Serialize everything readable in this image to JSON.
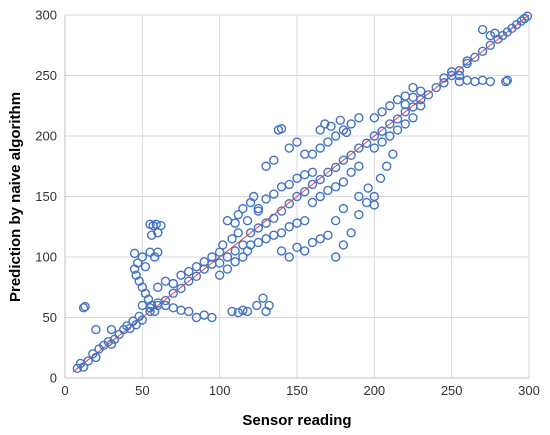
{
  "chart_data": {
    "type": "scatter",
    "title": "",
    "xlabel": "Sensor reading",
    "ylabel": "Prediction by naive algorithm",
    "xlim": [
      0,
      300
    ],
    "ylim": [
      0,
      300
    ],
    "xticks": [
      0,
      50,
      100,
      150,
      200,
      250,
      300
    ],
    "yticks": [
      0,
      50,
      100,
      150,
      200,
      250,
      300
    ],
    "grid": true,
    "legend": "none",
    "marker": "hollow-circle",
    "colors": {
      "points": "#4472C4",
      "reference_line": "#E0404A",
      "grid": "#D9D9D9",
      "axis": "#BFBFBF"
    },
    "reference_line": {
      "x": [
        5,
        300
      ],
      "y": [
        5,
        300
      ]
    },
    "series": [
      {
        "points": [
          [
            8,
            8
          ],
          [
            10,
            12
          ],
          [
            12,
            9
          ],
          [
            15,
            14
          ],
          [
            18,
            20
          ],
          [
            20,
            17
          ],
          [
            22,
            24
          ],
          [
            25,
            27
          ],
          [
            28,
            30
          ],
          [
            30,
            28
          ],
          [
            12,
            58
          ],
          [
            13,
            59
          ],
          [
            20,
            40
          ],
          [
            30,
            40
          ],
          [
            32,
            32
          ],
          [
            35,
            36
          ],
          [
            38,
            40
          ],
          [
            40,
            43
          ],
          [
            42,
            41
          ],
          [
            44,
            47
          ],
          [
            46,
            44
          ],
          [
            48,
            51
          ],
          [
            50,
            48
          ],
          [
            45,
            90
          ],
          [
            46,
            85
          ],
          [
            48,
            80
          ],
          [
            50,
            75
          ],
          [
            52,
            70
          ],
          [
            54,
            65
          ],
          [
            56,
            60
          ],
          [
            58,
            55
          ],
          [
            45,
            103
          ],
          [
            50,
            100
          ],
          [
            55,
            104
          ],
          [
            58,
            100
          ],
          [
            60,
            104
          ],
          [
            47,
            95
          ],
          [
            52,
            92
          ],
          [
            55,
            127
          ],
          [
            57,
            126
          ],
          [
            59,
            127
          ],
          [
            62,
            126
          ],
          [
            60,
            120
          ],
          [
            56,
            118
          ],
          [
            50,
            60
          ],
          [
            55,
            58
          ],
          [
            60,
            62
          ],
          [
            65,
            60
          ],
          [
            70,
            58
          ],
          [
            75,
            56
          ],
          [
            80,
            55
          ],
          [
            85,
            50
          ],
          [
            90,
            52
          ],
          [
            95,
            50
          ],
          [
            55,
            55
          ],
          [
            60,
            60
          ],
          [
            65,
            64
          ],
          [
            70,
            70
          ],
          [
            75,
            74
          ],
          [
            80,
            80
          ],
          [
            85,
            84
          ],
          [
            90,
            90
          ],
          [
            95,
            94
          ],
          [
            60,
            75
          ],
          [
            65,
            80
          ],
          [
            70,
            78
          ],
          [
            75,
            85
          ],
          [
            80,
            88
          ],
          [
            85,
            92
          ],
          [
            90,
            96
          ],
          [
            95,
            100
          ],
          [
            100,
            95
          ],
          [
            100,
            104
          ],
          [
            102,
            110
          ],
          [
            105,
            100
          ],
          [
            108,
            115
          ],
          [
            110,
            105
          ],
          [
            112,
            120
          ],
          [
            115,
            110
          ],
          [
            100,
            85
          ],
          [
            105,
            90
          ],
          [
            110,
            96
          ],
          [
            115,
            100
          ],
          [
            118,
            105
          ],
          [
            105,
            130
          ],
          [
            110,
            128
          ],
          [
            112,
            135
          ],
          [
            115,
            140
          ],
          [
            118,
            130
          ],
          [
            120,
            145
          ],
          [
            122,
            150
          ],
          [
            125,
            138
          ],
          [
            108,
            55
          ],
          [
            112,
            54
          ],
          [
            115,
            56
          ],
          [
            118,
            55
          ],
          [
            124,
            60
          ],
          [
            128,
            66
          ],
          [
            130,
            55
          ],
          [
            132,
            60
          ],
          [
            120,
            120
          ],
          [
            125,
            124
          ],
          [
            130,
            128
          ],
          [
            135,
            132
          ],
          [
            140,
            138
          ],
          [
            145,
            144
          ],
          [
            150,
            150
          ],
          [
            155,
            154
          ],
          [
            120,
            110
          ],
          [
            125,
            112
          ],
          [
            130,
            115
          ],
          [
            135,
            118
          ],
          [
            140,
            120
          ],
          [
            145,
            125
          ],
          [
            150,
            128
          ],
          [
            155,
            130
          ],
          [
            125,
            140
          ],
          [
            130,
            148
          ],
          [
            135,
            152
          ],
          [
            140,
            158
          ],
          [
            145,
            160
          ],
          [
            150,
            165
          ],
          [
            155,
            168
          ],
          [
            160,
            170
          ],
          [
            130,
            175
          ],
          [
            135,
            180
          ],
          [
            138,
            205
          ],
          [
            140,
            206
          ],
          [
            145,
            190
          ],
          [
            150,
            195
          ],
          [
            155,
            185
          ],
          [
            140,
            105
          ],
          [
            145,
            100
          ],
          [
            150,
            108
          ],
          [
            155,
            105
          ],
          [
            160,
            112
          ],
          [
            165,
            115
          ],
          [
            170,
            118
          ],
          [
            160,
            160
          ],
          [
            165,
            164
          ],
          [
            170,
            170
          ],
          [
            175,
            174
          ],
          [
            180,
            180
          ],
          [
            185,
            184
          ],
          [
            190,
            190
          ],
          [
            195,
            194
          ],
          [
            160,
            145
          ],
          [
            165,
            150
          ],
          [
            170,
            155
          ],
          [
            175,
            158
          ],
          [
            180,
            162
          ],
          [
            185,
            170
          ],
          [
            190,
            175
          ],
          [
            160,
            185
          ],
          [
            165,
            190
          ],
          [
            170,
            195
          ],
          [
            175,
            200
          ],
          [
            180,
            205
          ],
          [
            185,
            210
          ],
          [
            190,
            215
          ],
          [
            165,
            205
          ],
          [
            168,
            210
          ],
          [
            172,
            208
          ],
          [
            178,
            213
          ],
          [
            182,
            203
          ],
          [
            175,
            130
          ],
          [
            180,
            140
          ],
          [
            185,
            120
          ],
          [
            190,
            135
          ],
          [
            195,
            145
          ],
          [
            200,
            150
          ],
          [
            200,
            200
          ],
          [
            205,
            204
          ],
          [
            210,
            210
          ],
          [
            215,
            214
          ],
          [
            220,
            220
          ],
          [
            225,
            224
          ],
          [
            230,
            230
          ],
          [
            235,
            234
          ],
          [
            200,
            190
          ],
          [
            205,
            195
          ],
          [
            210,
            200
          ],
          [
            215,
            205
          ],
          [
            220,
            210
          ],
          [
            225,
            215
          ],
          [
            200,
            215
          ],
          [
            205,
            220
          ],
          [
            210,
            225
          ],
          [
            215,
            230
          ],
          [
            220,
            226
          ],
          [
            225,
            232
          ],
          [
            230,
            225
          ],
          [
            220,
            233
          ],
          [
            225,
            240
          ],
          [
            230,
            237
          ],
          [
            240,
            240
          ],
          [
            245,
            244
          ],
          [
            250,
            250
          ],
          [
            255,
            254
          ],
          [
            260,
            260
          ],
          [
            265,
            265
          ],
          [
            270,
            270
          ],
          [
            275,
            275
          ],
          [
            280,
            280
          ],
          [
            283,
            283
          ],
          [
            286,
            286
          ],
          [
            289,
            289
          ],
          [
            292,
            292
          ],
          [
            295,
            295
          ],
          [
            297,
            297
          ],
          [
            299,
            299
          ],
          [
            245,
            248
          ],
          [
            250,
            253
          ],
          [
            255,
            250
          ],
          [
            260,
            262
          ],
          [
            255,
            245
          ],
          [
            260,
            246
          ],
          [
            265,
            245
          ],
          [
            270,
            246
          ],
          [
            275,
            245
          ],
          [
            285,
            245
          ],
          [
            286,
            246
          ],
          [
            270,
            288
          ],
          [
            275,
            283
          ],
          [
            278,
            285
          ],
          [
            196,
            157
          ],
          [
            200,
            143
          ],
          [
            204,
            165
          ],
          [
            208,
            175
          ],
          [
            212,
            185
          ],
          [
            190,
            150
          ],
          [
            180,
            110
          ],
          [
            175,
            100
          ]
        ]
      }
    ]
  }
}
